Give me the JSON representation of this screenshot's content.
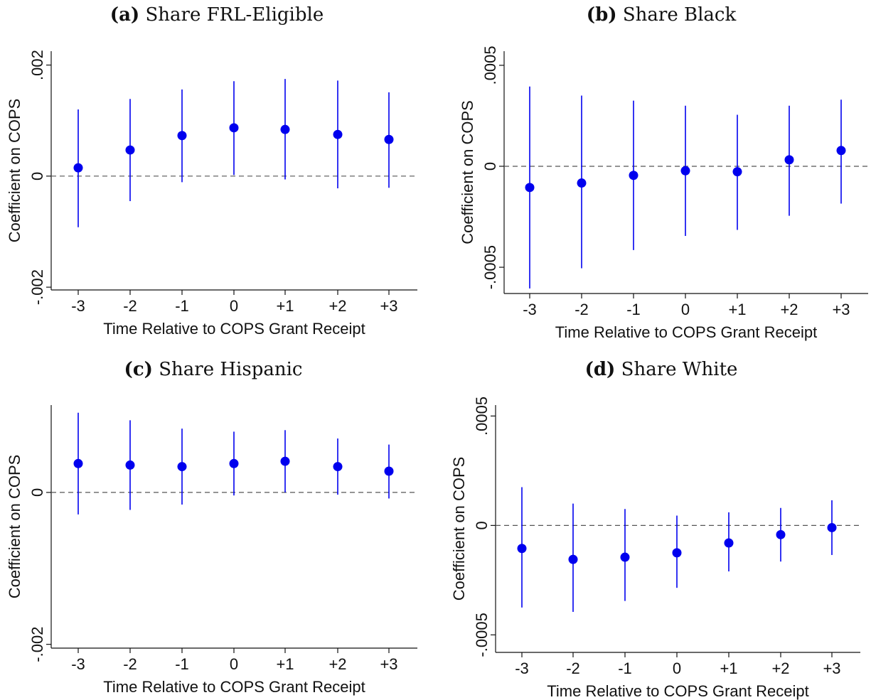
{
  "chart_data": [
    {
      "type": "scatter",
      "panel_tag": "(a)",
      "title": "Share FRL-Eligible",
      "xlabel": "Time Relative to COPS Grant Receipt",
      "ylabel": "Coefficient on COPS",
      "categories": [
        "-3",
        "-2",
        "-1",
        "0",
        "+1",
        "+2",
        "+3"
      ],
      "yticks": [
        {
          "value": 0.002,
          "label": ".002"
        },
        {
          "value": 0,
          "label": "0"
        },
        {
          "value": -0.002,
          "label": "-.002"
        }
      ],
      "ylim": [
        -0.00205,
        0.00225
      ],
      "zero_line": "dashed",
      "series": [
        {
          "estimate": [
            0.00015,
            0.00047,
            0.00073,
            0.00087,
            0.00084,
            0.00075,
            0.00066
          ],
          "ci_low": [
            -0.00092,
            -0.00045,
            -0.00011,
            2e-05,
            -6e-05,
            -0.00022,
            -0.00021
          ],
          "ci_high": [
            0.0012,
            0.00139,
            0.00156,
            0.00171,
            0.00175,
            0.00172,
            0.00151
          ]
        }
      ]
    },
    {
      "type": "scatter",
      "panel_tag": "(b)",
      "title": "Share Black",
      "xlabel": "Time Relative to COPS Grant Receipt",
      "ylabel": "Coefficient on COPS",
      "categories": [
        "-3",
        "-2",
        "-1",
        "0",
        "+1",
        "+2",
        "+3"
      ],
      "yticks": [
        {
          "value": 0.0005,
          "label": ".0005"
        },
        {
          "value": 0,
          "label": "0"
        },
        {
          "value": -0.0005,
          "label": "-.0005"
        }
      ],
      "ylim": [
        -0.00063,
        0.00057
      ],
      "zero_line": "dashed",
      "series": [
        {
          "estimate": [
            -0.000105,
            -8.3e-05,
            -4.5e-05,
            -2.2e-05,
            -2.7e-05,
            3.2e-05,
            7.8e-05
          ],
          "ci_low": [
            -0.000605,
            -0.000505,
            -0.000415,
            -0.000345,
            -0.000315,
            -0.000245,
            -0.000185
          ],
          "ci_high": [
            0.000395,
            0.00035,
            0.000325,
            0.0003,
            0.000255,
            0.0003,
            0.00033
          ]
        }
      ]
    },
    {
      "type": "scatter",
      "panel_tag": "(c)",
      "title": "Share Hispanic",
      "xlabel": "Time Relative to COPS Grant Receipt",
      "ylabel": "Coefficient on COPS",
      "categories": [
        "-3",
        "-2",
        "-1",
        "0",
        "+1",
        "+2",
        "+3"
      ],
      "yticks": [
        {
          "value": 0,
          "label": "0"
        },
        {
          "value": -0.002,
          "label": "-.002"
        }
      ],
      "ylim": [
        -0.00205,
        0.00115
      ],
      "zero_line": "dashed",
      "series": [
        {
          "estimate": [
            0.00038,
            0.00036,
            0.00034,
            0.00038,
            0.00041,
            0.00034,
            0.00028
          ],
          "ci_low": [
            -0.00029,
            -0.00023,
            -0.00016,
            -4e-05,
            0.0,
            -3e-05,
            -8e-05
          ],
          "ci_high": [
            0.00105,
            0.00095,
            0.00084,
            0.0008,
            0.00082,
            0.00071,
            0.00063
          ]
        }
      ]
    },
    {
      "type": "scatter",
      "panel_tag": "(d)",
      "title": "Share White",
      "xlabel": "Time Relative to COPS Grant Receipt",
      "ylabel": "Coefficient on COPS",
      "categories": [
        "-3",
        "-2",
        "-1",
        "0",
        "+1",
        "+2",
        "+3"
      ],
      "yticks": [
        {
          "value": 0.0005,
          "label": ".0005"
        },
        {
          "value": 0,
          "label": "0"
        },
        {
          "value": -0.0005,
          "label": "-.0005"
        }
      ],
      "ylim": [
        -0.00058,
        0.00055
      ],
      "zero_line": "dashed",
      "series": [
        {
          "estimate": [
            -0.000105,
            -0.000155,
            -0.000145,
            -0.000125,
            -8e-05,
            -4.2e-05,
            -1e-05
          ],
          "ci_low": [
            -0.000375,
            -0.000395,
            -0.000345,
            -0.000285,
            -0.00021,
            -0.000165,
            -0.000135
          ],
          "ci_high": [
            0.000175,
            0.0001,
            7.5e-05,
            4.5e-05,
            6e-05,
            8e-05,
            0.000115
          ]
        }
      ]
    }
  ],
  "colors": {
    "marker": "#0000ee",
    "ci": "#0000ee",
    "axis": "#111111",
    "zero_line": "#555555"
  }
}
